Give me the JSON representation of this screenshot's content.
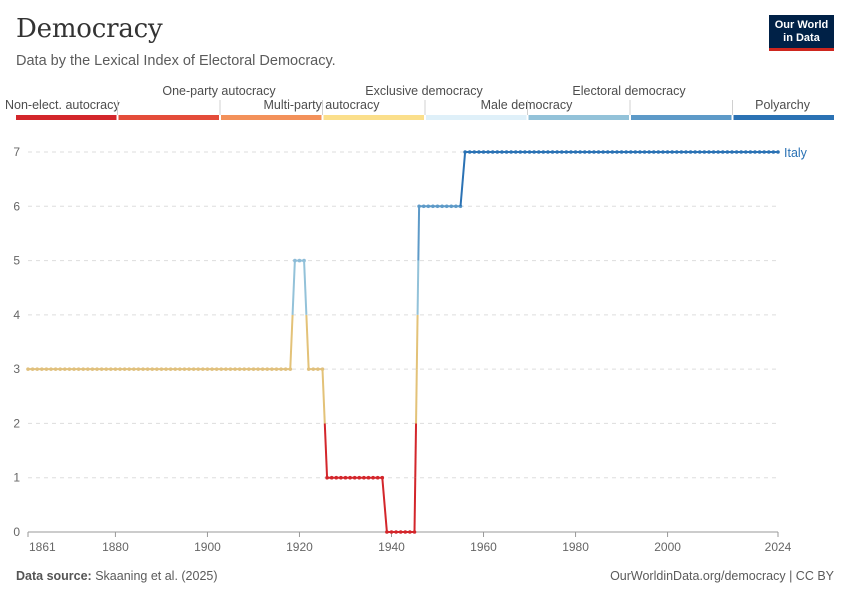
{
  "header": {
    "title": "Democracy",
    "subtitle": "Data by the Lexical Index of Electoral Democracy."
  },
  "logo": {
    "line1": "Our World",
    "line2": "in Data"
  },
  "footer": {
    "source_label": "Data source:",
    "source_value": "Skaaning et al. (2025)",
    "credit": "OurWorldinData.org/democracy | CC BY"
  },
  "chart_data": {
    "type": "line",
    "title": "Democracy",
    "xlim": [
      1861,
      2024
    ],
    "ylim": [
      0,
      7
    ],
    "x_ticks": [
      "1861",
      "1880",
      "1900",
      "1920",
      "1940",
      "1960",
      "1980",
      "2000",
      "2024"
    ],
    "y_ticks": [
      "0",
      "1",
      "2",
      "3",
      "4",
      "5",
      "6",
      "7"
    ],
    "grid": "horizontal dashed",
    "legend": {
      "placement": "top",
      "categories": [
        {
          "label": "Non-elect. autocracy",
          "color": "#d3262b"
        },
        {
          "label": "One-party autocracy",
          "color": "#e44c3a"
        },
        {
          "label": "Multi-party autocracy",
          "color": "#f3915a"
        },
        {
          "label": "Exclusive democracy",
          "color": "#fbdf8b"
        },
        {
          "label": "Male democracy",
          "color": "#dff0f9"
        },
        {
          "label": "Electoral democracy",
          "color": "#93c2d9"
        },
        {
          "label": "Polyarchy",
          "color": "#5d9ac8"
        },
        {
          "label": "",
          "color": "#2b72b4"
        }
      ]
    },
    "series": [
      {
        "name": "Italy",
        "segments": [
          {
            "from": 1861,
            "to": 1918,
            "value": 3
          },
          {
            "from": 1919,
            "to": 1921,
            "value": 5
          },
          {
            "from": 1922,
            "to": 1925,
            "value": 3
          },
          {
            "from": 1926,
            "to": 1938,
            "value": 1
          },
          {
            "from": 1939,
            "to": 1945,
            "value": 0
          },
          {
            "from": 1946,
            "to": 1955,
            "value": 6
          },
          {
            "from": 1956,
            "to": 2024,
            "value": 7
          }
        ]
      }
    ]
  }
}
